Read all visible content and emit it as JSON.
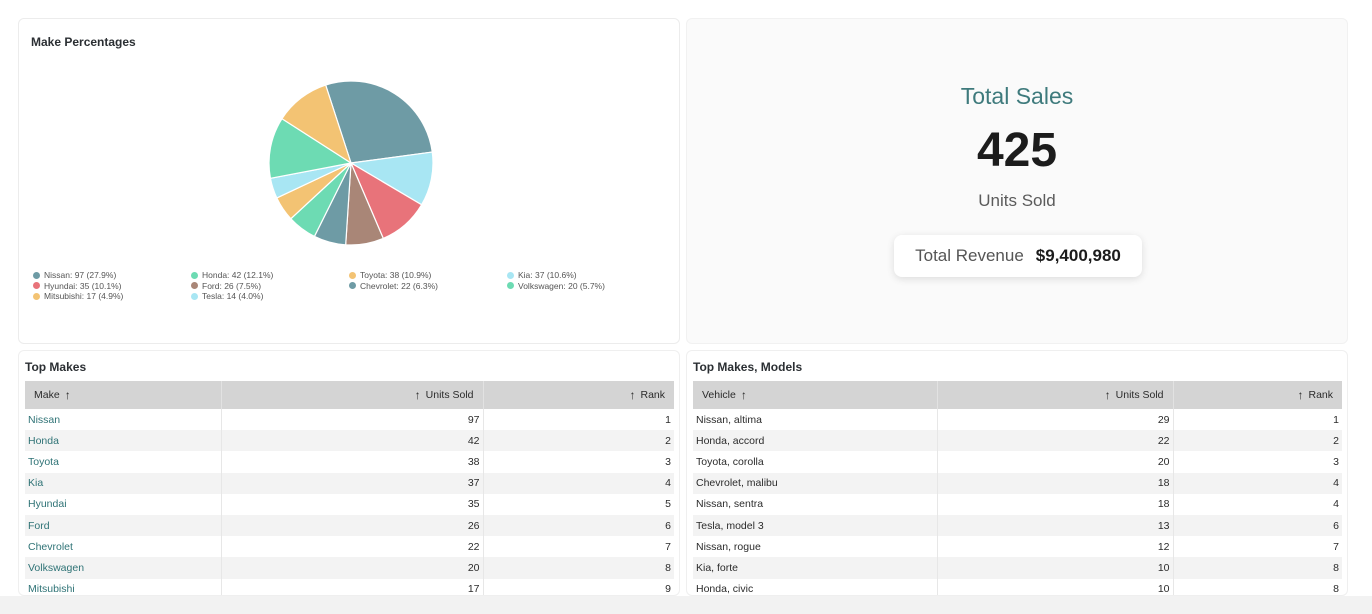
{
  "pie_card": {
    "title": "Make Percentages"
  },
  "chart_data": {
    "type": "pie",
    "title": "Make Percentages",
    "slices": [
      {
        "label": "Nissan",
        "value": 97,
        "legend": "Nissan: 97 (27.9%)",
        "color": "#6e9ba5"
      },
      {
        "label": "Kia",
        "value": 37,
        "legend": "Kia: 37 (10.6%)",
        "color": "#a8e6f3"
      },
      {
        "label": "Hyundai",
        "value": 35,
        "legend": "Hyundai: 35 (10.1%)",
        "color": "#e8737a"
      },
      {
        "label": "Ford",
        "value": 26,
        "legend": "Ford: 26 (7.5%)",
        "color": "#a98677"
      },
      {
        "label": "Chevrolet",
        "value": 22,
        "legend": "Chevrolet: 22 (6.3%)",
        "color": "#6e9ba5"
      },
      {
        "label": "Volkswagen",
        "value": 20,
        "legend": "Volkswagen: 20 (5.7%)",
        "color": "#6ddbb3"
      },
      {
        "label": "Mitsubishi",
        "value": 17,
        "legend": "Mitsubishi: 17 (4.9%)",
        "color": "#f3c373"
      },
      {
        "label": "Tesla",
        "value": 14,
        "legend": "Tesla: 14 (4.0%)",
        "color": "#a8e6f3"
      },
      {
        "label": "Honda",
        "value": 42,
        "legend": "Honda: 42 (12.1%)",
        "color": "#6ddbb3"
      },
      {
        "label": "Toyota",
        "value": 38,
        "legend": "Toyota: 38 (10.9%)",
        "color": "#f3c373"
      }
    ],
    "legend_order": [
      "Nissan",
      "Honda",
      "Toyota",
      "Kia",
      "Hyundai",
      "Ford",
      "Chevrolet",
      "Volkswagen",
      "Mitsubishi",
      "Tesla"
    ],
    "legend_position": "bottom"
  },
  "kpi": {
    "title": "Total Sales",
    "value": "425",
    "subtitle": "Units Sold",
    "revenue_label": "Total Revenue",
    "revenue_value": "$9,400,980"
  },
  "top_makes": {
    "title": "Top Makes",
    "columns": [
      "Make",
      "Units Sold",
      "Rank"
    ],
    "rows": [
      [
        "Nissan",
        "97",
        "1"
      ],
      [
        "Honda",
        "42",
        "2"
      ],
      [
        "Toyota",
        "38",
        "3"
      ],
      [
        "Kia",
        "37",
        "4"
      ],
      [
        "Hyundai",
        "35",
        "5"
      ],
      [
        "Ford",
        "26",
        "6"
      ],
      [
        "Chevrolet",
        "22",
        "7"
      ],
      [
        "Volkswagen",
        "20",
        "8"
      ],
      [
        "Mitsubishi",
        "17",
        "9"
      ]
    ]
  },
  "top_models": {
    "title": "Top Makes, Models",
    "columns": [
      "Vehicle",
      "Units Sold",
      "Rank"
    ],
    "rows": [
      [
        "Nissan, altima",
        "29",
        "1"
      ],
      [
        "Honda, accord",
        "22",
        "2"
      ],
      [
        "Toyota, corolla",
        "20",
        "3"
      ],
      [
        "Chevrolet, malibu",
        "18",
        "4"
      ],
      [
        "Nissan, sentra",
        "18",
        "4"
      ],
      [
        "Tesla, model 3",
        "13",
        "6"
      ],
      [
        "Nissan, rogue",
        "12",
        "7"
      ],
      [
        "Kia, forte",
        "10",
        "8"
      ],
      [
        "Honda, civic",
        "10",
        "8"
      ]
    ]
  }
}
